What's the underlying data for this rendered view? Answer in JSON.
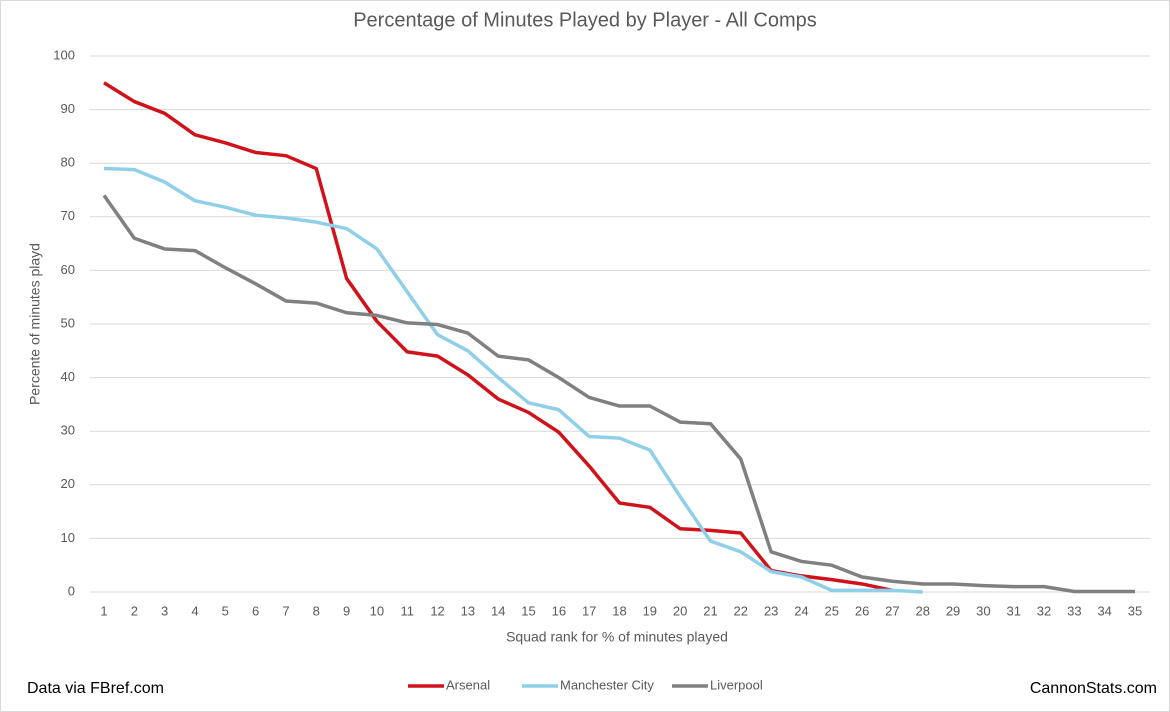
{
  "chart_data": {
    "type": "line",
    "title": "Percentage of Minutes Played by Player - All Comps",
    "x_label": "Squad rank for % of minutes played",
    "y_label": "Percente of minutes playd",
    "source": "Data via FBref.com",
    "credit": "CannonStats.com",
    "x": [
      1,
      2,
      3,
      4,
      5,
      6,
      7,
      8,
      9,
      10,
      11,
      12,
      13,
      14,
      15,
      16,
      17,
      18,
      19,
      20,
      21,
      22,
      23,
      24,
      25,
      26,
      27,
      28,
      29,
      30,
      31,
      32,
      33,
      34,
      35
    ],
    "xlim": [
      1,
      35
    ],
    "ylim": [
      0,
      100
    ],
    "yticks": [
      0,
      10,
      20,
      30,
      40,
      50,
      60,
      70,
      80,
      90,
      100
    ],
    "grid": true,
    "legend": "bottom",
    "series": [
      {
        "name": "Arsenal",
        "color": "#d0121b",
        "values": [
          95,
          91.5,
          89.3,
          85.3,
          83.8,
          82,
          81.4,
          79,
          58.5,
          50.5,
          44.8,
          44,
          40.5,
          36,
          33.5,
          29.8,
          23.5,
          16.6,
          15.8,
          11.8,
          11.5,
          11,
          4,
          3,
          2.3,
          1.5,
          0.3,
          null,
          null,
          null,
          null,
          null,
          null,
          null,
          null
        ]
      },
      {
        "name": "Manchester City",
        "color": "#8fcfe8",
        "values": [
          79,
          78.8,
          76.5,
          73,
          71.8,
          70.3,
          69.8,
          69,
          67.8,
          64,
          56,
          48,
          45,
          40,
          35.3,
          34,
          29,
          28.7,
          26.5,
          17.8,
          9.5,
          7.5,
          3.8,
          2.8,
          0.3,
          0.3,
          0.3,
          0,
          null,
          null,
          null,
          null,
          null,
          null,
          null
        ]
      },
      {
        "name": "Liverpool",
        "color": "#808080",
        "values": [
          74,
          66,
          64,
          63.7,
          60.5,
          57.5,
          54.3,
          53.9,
          52.1,
          51.6,
          50.2,
          49.9,
          48.3,
          44,
          43.3,
          40,
          36.3,
          34.7,
          34.7,
          31.7,
          31.4,
          24.8,
          7.5,
          5.7,
          5,
          2.8,
          2,
          1.5,
          1.5,
          1.2,
          1,
          1,
          0.1,
          0.1,
          0.1
        ]
      }
    ]
  }
}
